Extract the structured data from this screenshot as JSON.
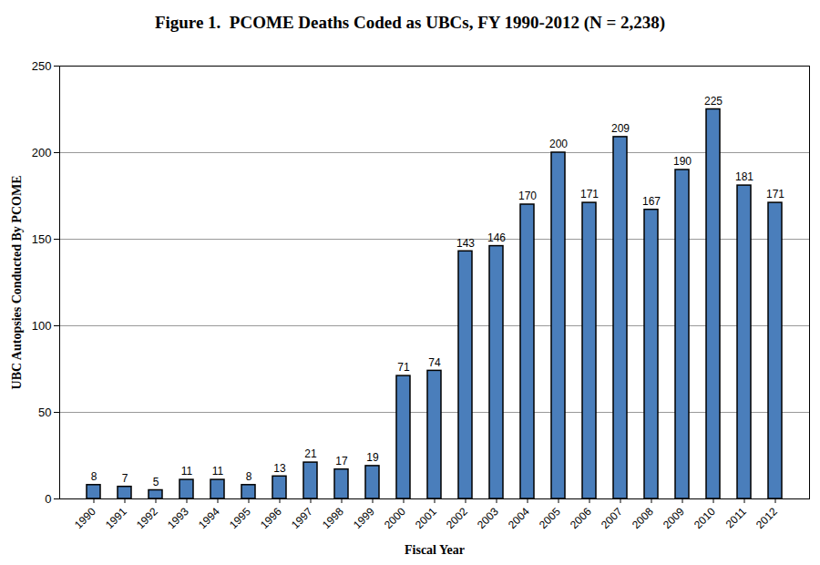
{
  "chart_data": {
    "type": "bar",
    "title": "Figure 1.  PCOME Deaths Coded as UBCs, FY 1990-2012 (N = 2,238)",
    "x_label": "Fiscal Year",
    "y_label": "UBC Autopsies Conducted By PCOME",
    "categories": [
      "1990",
      "1991",
      "1992",
      "1993",
      "1994",
      "1995",
      "1996",
      "1997",
      "1998",
      "1999",
      "2000",
      "2001",
      "2002",
      "2003",
      "2004",
      "2005",
      "2006",
      "2007",
      "2008",
      "2009",
      "2010",
      "2011",
      "2012"
    ],
    "values": [
      8,
      7,
      5,
      11,
      11,
      8,
      13,
      21,
      17,
      19,
      71,
      74,
      143,
      146,
      170,
      200,
      171,
      209,
      167,
      190,
      225,
      181,
      171
    ],
    "color": "#4a7ebb",
    "ylim": [
      0,
      250
    ],
    "yticks": [
      0,
      50,
      100,
      150,
      200,
      250
    ],
    "grid": true,
    "data_labels": true
  }
}
